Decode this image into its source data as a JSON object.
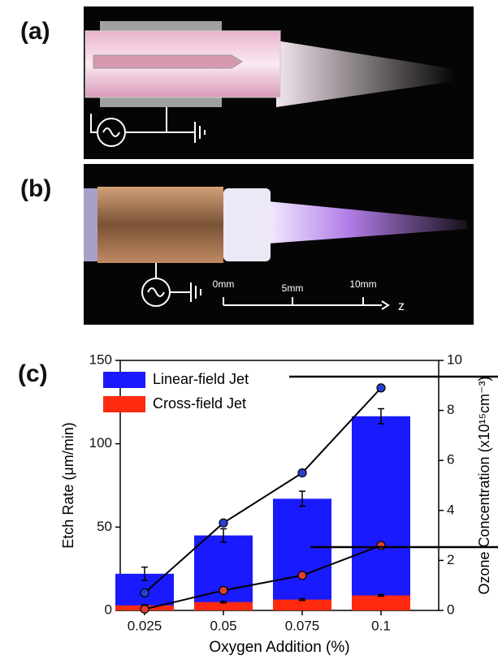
{
  "panel_labels": [
    "(a)",
    "(b)",
    "(c)"
  ],
  "scale_bar": {
    "ticks": [
      "0mm",
      "5mm",
      "10mm"
    ],
    "axis": "z"
  },
  "chart_data": {
    "type": "bar",
    "x_label": "Oxygen Addition (%)",
    "y_label": "Etch Rate (μm/min)",
    "y2_label": "Ozone Concentration (x10¹⁵cm⁻³)",
    "categories": [
      "0.025",
      "0.05",
      "0.075",
      "0.1"
    ],
    "ylim": [
      0,
      150
    ],
    "yticks": [
      0,
      50,
      100,
      150
    ],
    "y2lim": [
      0,
      10
    ],
    "y2ticks": [
      0,
      2,
      4,
      6,
      8,
      10
    ],
    "series": [
      {
        "name": "Linear-field Jet",
        "color": "#1a1aff",
        "values": [
          22,
          45,
          67,
          116.5
        ],
        "errors": [
          4,
          4,
          4.5,
          4.5
        ]
      },
      {
        "name": "Cross-field Jet",
        "color": "#ff2a10",
        "values": [
          3,
          5,
          6.5,
          9
        ],
        "errors": [
          0.5,
          0.5,
          0.5,
          0.5
        ]
      },
      {
        "type": "line",
        "axis": "y2",
        "color": "#2a3fd0",
        "values": [
          0.7,
          3.5,
          5.5,
          8.9
        ]
      },
      {
        "type": "line",
        "axis": "y2",
        "color": "#e0402a",
        "values": [
          0.05,
          0.8,
          1.4,
          2.6
        ]
      }
    ],
    "legend": "upper left"
  }
}
